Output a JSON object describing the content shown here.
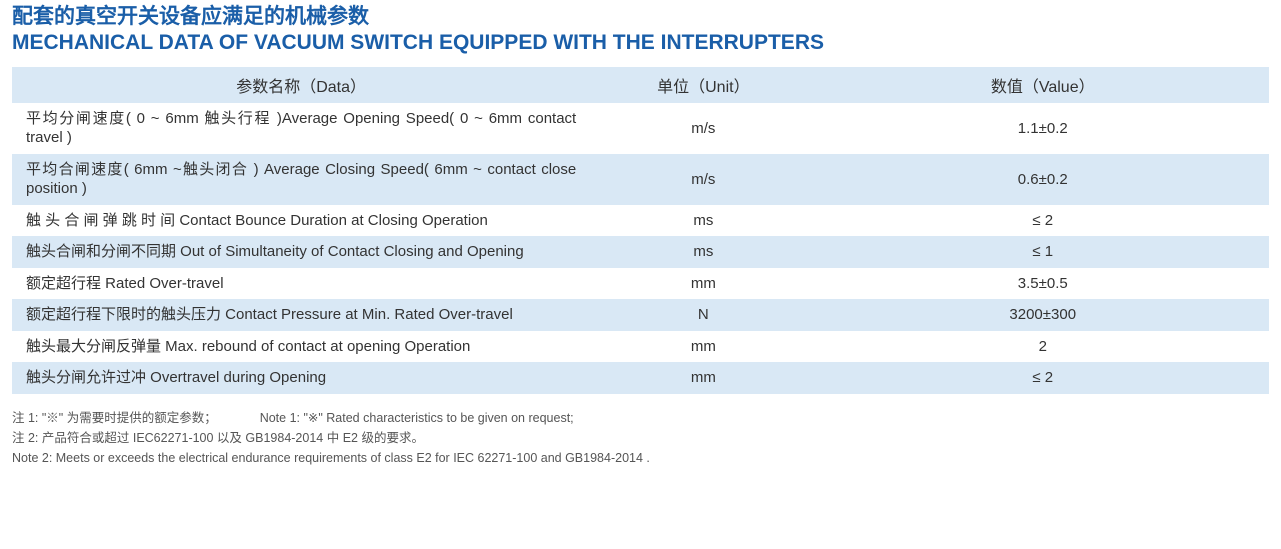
{
  "title": {
    "cn": "配套的真空开关设备应满足的机械参数",
    "en": "MECHANICAL DATA OF VACUUM SWITCH EQUIPPED WITH THE INTERRUPTERS"
  },
  "columns": {
    "data": "参数名称（Data）",
    "unit": "单位（Unit）",
    "value": "数值（Value）"
  },
  "rows": [
    {
      "param": "平均分闸速度( 0 ~ 6mm 触头行程 )Average Opening Speed( 0 ~ 6mm contact travel )",
      "unit": "m/s",
      "value": "1.1±0.2"
    },
    {
      "param": "平均合闸速度( 6mm ~触头闭合 ) Average Closing Speed( 6mm ~ contact close position )",
      "unit": "m/s",
      "value": "0.6±0.2"
    },
    {
      "param": "触 头 合 闸 弹 跳 时 间 Contact Bounce Duration at Closing Operation",
      "unit": "ms",
      "value": "≤ 2"
    },
    {
      "param": "触头合闸和分闸不同期 Out of Simultaneity of Contact Closing and Opening",
      "unit": "ms",
      "value": "≤ 1"
    },
    {
      "param": "额定超行程 Rated Over-travel",
      "unit": "mm",
      "value": "3.5±0.5"
    },
    {
      "param": "额定超行程下限时的触头压力 Contact Pressure at Min. Rated Over-travel",
      "unit": "N",
      "value": "3200±300"
    },
    {
      "param": "触头最大分闸反弹量 Max. rebound of contact at opening Operation",
      "unit": "mm",
      "value": "2"
    },
    {
      "param": "触头分闸允许过冲 Overtravel during Opening",
      "unit": "mm",
      "value": "≤ 2"
    }
  ],
  "notes": {
    "n1cn": "注 1: \"※\" 为需要时提供的额定参数；",
    "n1en": "Note 1: \"※\" Rated characteristics to be given on request;",
    "n2cn": "注 2: 产品符合或超过 IEC62271-100 以及 GB1984-2014 中 E2 级的要求。",
    "n2en": "Note 2: Meets or exceeds the electrical endurance requirements of class E2 for IEC 62271-100 and GB1984-2014 ."
  },
  "style": {
    "title_color": "#1a5ea8",
    "row_alt_bg": "#d9e8f5",
    "row_plain_bg": "#ffffff",
    "text_color": "#333333",
    "note_color": "#555555"
  }
}
